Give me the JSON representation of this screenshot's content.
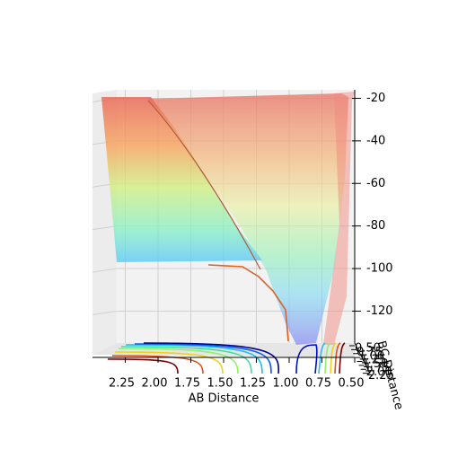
{
  "chart_data": {
    "type": "surface3d",
    "xlabel": "AB Distance",
    "ylabel": "BC Distance",
    "xlim": [
      0.5,
      2.5
    ],
    "ylim": [
      0.5,
      2.5
    ],
    "zlim": [
      -135,
      -16
    ],
    "xticks": [
      {
        "value": 2.25,
        "label": "2.25"
      },
      {
        "value": 2.0,
        "label": "2.00"
      },
      {
        "value": 1.75,
        "label": "1.75"
      },
      {
        "value": 1.5,
        "label": "1.50"
      },
      {
        "value": 1.25,
        "label": "1.25"
      },
      {
        "value": 1.0,
        "label": "1.00"
      },
      {
        "value": 0.75,
        "label": "0.75"
      },
      {
        "value": 0.5,
        "label": "0.50"
      }
    ],
    "yticks": [
      {
        "value": 0.5,
        "label": "0.50"
      },
      {
        "value": 0.75,
        "label": "0.75"
      },
      {
        "value": 1.0,
        "label": "1.00"
      },
      {
        "value": 1.25,
        "label": "1.25"
      },
      {
        "value": 1.5,
        "label": "1.50"
      },
      {
        "value": 1.75,
        "label": "1.75"
      },
      {
        "value": 2.0,
        "label": "2.00"
      },
      {
        "value": 2.25,
        "label": "2.25"
      }
    ],
    "zticks": [
      -20,
      -40,
      -60,
      -80,
      -100,
      -120
    ],
    "grid": true
  }
}
